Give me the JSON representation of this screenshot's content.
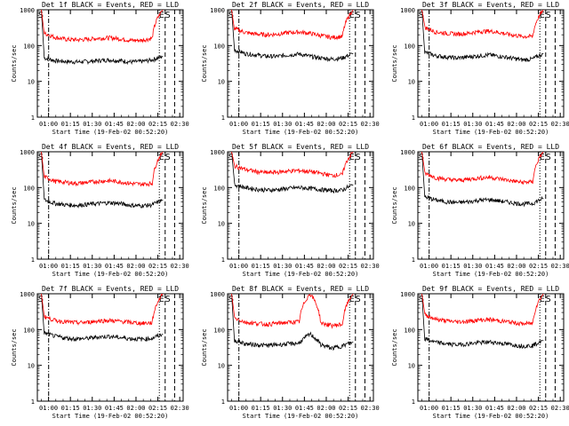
{
  "figure": {
    "xlabel": "Start Time (19-Feb-02 00:52:20)",
    "ylabel": "Counts/sec",
    "x_ticks": [
      "01:00",
      "01:15",
      "01:30",
      "01:45",
      "02:00",
      "02:15",
      "02:30"
    ],
    "y_ticks": [
      "1",
      "10",
      "100",
      "1000"
    ],
    "marker_left": "S",
    "marker_right": "E",
    "marker_right2": "S"
  },
  "chart_data": [
    {
      "type": "line",
      "title": "Det 1f BLACK = Events, RED = LLD",
      "y_scale": "log",
      "ylim": [
        1,
        1000
      ],
      "x_range": [
        "00:52:20",
        "02:32:20"
      ],
      "series": [
        {
          "color": "#000000",
          "values": [
            45,
            38,
            36,
            35,
            36,
            38,
            40,
            38,
            35,
            36,
            40,
            50
          ]
        },
        {
          "color": "#ff0000",
          "values": [
            220,
            170,
            150,
            145,
            150,
            160,
            165,
            155,
            140,
            140,
            160,
            1000
          ]
        }
      ]
    },
    {
      "type": "line",
      "title": "Det 2f BLACK = Events, RED = LLD",
      "y_scale": "log",
      "ylim": [
        1,
        1000
      ],
      "x_range": [
        "00:52:20",
        "02:32:20"
      ],
      "series": [
        {
          "color": "#000000",
          "values": [
            75,
            60,
            55,
            50,
            50,
            55,
            58,
            50,
            45,
            42,
            45,
            60
          ]
        },
        {
          "color": "#ff0000",
          "values": [
            300,
            230,
            210,
            200,
            210,
            230,
            240,
            220,
            190,
            170,
            180,
            1000
          ]
        }
      ]
    },
    {
      "type": "line",
      "title": "Det 3f BLACK = Events, RED = LLD",
      "y_scale": "log",
      "ylim": [
        1,
        1000
      ],
      "x_range": [
        "00:52:20",
        "02:32:20"
      ],
      "series": [
        {
          "color": "#000000",
          "values": [
            65,
            52,
            48,
            45,
            48,
            52,
            55,
            50,
            45,
            40,
            42,
            60
          ]
        },
        {
          "color": "#ff0000",
          "values": [
            320,
            240,
            220,
            210,
            220,
            245,
            255,
            230,
            200,
            180,
            180,
            1000
          ]
        }
      ]
    },
    {
      "type": "line",
      "title": "Det 4f BLACK = Events, RED = LLD",
      "y_scale": "log",
      "ylim": [
        1,
        1000
      ],
      "x_range": [
        "00:52:20",
        "02:32:20"
      ],
      "series": [
        {
          "color": "#000000",
          "values": [
            45,
            36,
            33,
            32,
            34,
            36,
            38,
            36,
            32,
            31,
            33,
            45
          ]
        },
        {
          "color": "#ff0000",
          "values": [
            200,
            150,
            140,
            130,
            140,
            150,
            155,
            145,
            130,
            125,
            130,
            1000
          ]
        }
      ]
    },
    {
      "type": "line",
      "title": "Det 5f BLACK = Events, RED = LLD",
      "y_scale": "log",
      "ylim": [
        1,
        1000
      ],
      "x_range": [
        "00:52:20",
        "02:32:20"
      ],
      "series": [
        {
          "color": "#000000",
          "values": [
            120,
            100,
            90,
            85,
            88,
            95,
            100,
            95,
            88,
            82,
            85,
            120
          ]
        },
        {
          "color": "#ff0000",
          "values": [
            400,
            320,
            280,
            260,
            270,
            290,
            300,
            280,
            250,
            220,
            230,
            1000
          ]
        }
      ]
    },
    {
      "type": "line",
      "title": "Det 6f BLACK = Events, RED = LLD",
      "y_scale": "log",
      "ylim": [
        1,
        1000
      ],
      "x_range": [
        "00:52:20",
        "02:32:20"
      ],
      "series": [
        {
          "color": "#000000",
          "values": [
            55,
            45,
            40,
            38,
            40,
            44,
            46,
            42,
            38,
            35,
            36,
            50
          ]
        },
        {
          "color": "#ff0000",
          "values": [
            250,
            190,
            170,
            160,
            170,
            185,
            195,
            175,
            155,
            140,
            145,
            1000
          ]
        }
      ]
    },
    {
      "type": "line",
      "title": "Det 7f BLACK = Events, RED = LLD",
      "y_scale": "log",
      "ylim": [
        1,
        1000
      ],
      "x_range": [
        "00:52:20",
        "02:32:20"
      ],
      "series": [
        {
          "color": "#000000",
          "values": [
            80,
            65,
            58,
            55,
            57,
            62,
            65,
            60,
            56,
            54,
            57,
            75
          ]
        },
        {
          "color": "#ff0000",
          "values": [
            230,
            180,
            165,
            155,
            160,
            175,
            180,
            170,
            160,
            150,
            155,
            1000
          ]
        }
      ]
    },
    {
      "type": "line",
      "title": "Det 8f BLACK = Events, RED = LLD",
      "y_scale": "log",
      "ylim": [
        1,
        1000
      ],
      "x_range": [
        "00:52:20",
        "02:32:20"
      ],
      "series": [
        {
          "color": "#000000",
          "values": [
            50,
            40,
            38,
            36,
            38,
            40,
            42,
            75,
            38,
            30,
            35,
            45
          ]
        },
        {
          "color": "#ff0000",
          "values": [
            210,
            160,
            150,
            140,
            150,
            160,
            165,
            1000,
            150,
            130,
            140,
            1000
          ]
        }
      ]
    },
    {
      "type": "line",
      "title": "Det 9f BLACK = Events, RED = LLD",
      "y_scale": "log",
      "ylim": [
        1,
        1000
      ],
      "x_range": [
        "00:52:20",
        "02:32:20"
      ],
      "series": [
        {
          "color": "#000000",
          "values": [
            55,
            44,
            40,
            38,
            40,
            43,
            45,
            42,
            38,
            35,
            36,
            50
          ]
        },
        {
          "color": "#ff0000",
          "values": [
            260,
            195,
            175,
            165,
            170,
            185,
            190,
            175,
            160,
            145,
            150,
            1000
          ]
        }
      ]
    }
  ]
}
